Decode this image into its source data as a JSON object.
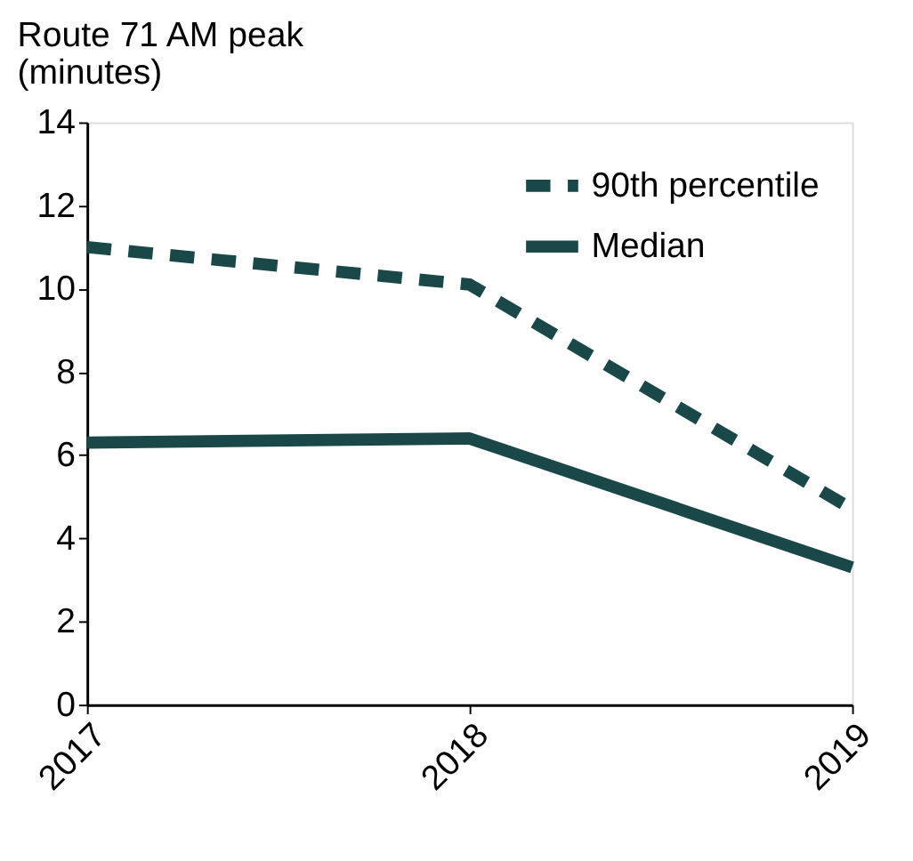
{
  "chart_data": {
    "type": "line",
    "ylabel": "Route 71 AM peak (minutes)",
    "categories": [
      "2017",
      "2018",
      "2019"
    ],
    "series": [
      {
        "name": "90th percentile",
        "color": "#1a4848",
        "line_style": "dashed",
        "values": [
          11.0,
          10.1,
          4.7
        ]
      },
      {
        "name": "Median",
        "color": "#1a4848",
        "line_style": "solid",
        "values": [
          6.3,
          6.4,
          3.3
        ]
      }
    ],
    "ylim": [
      0,
      14
    ],
    "yticks": [
      0,
      2,
      4,
      6,
      8,
      10,
      12,
      14
    ],
    "grid": false,
    "legend": "top right",
    "marker": "none"
  }
}
